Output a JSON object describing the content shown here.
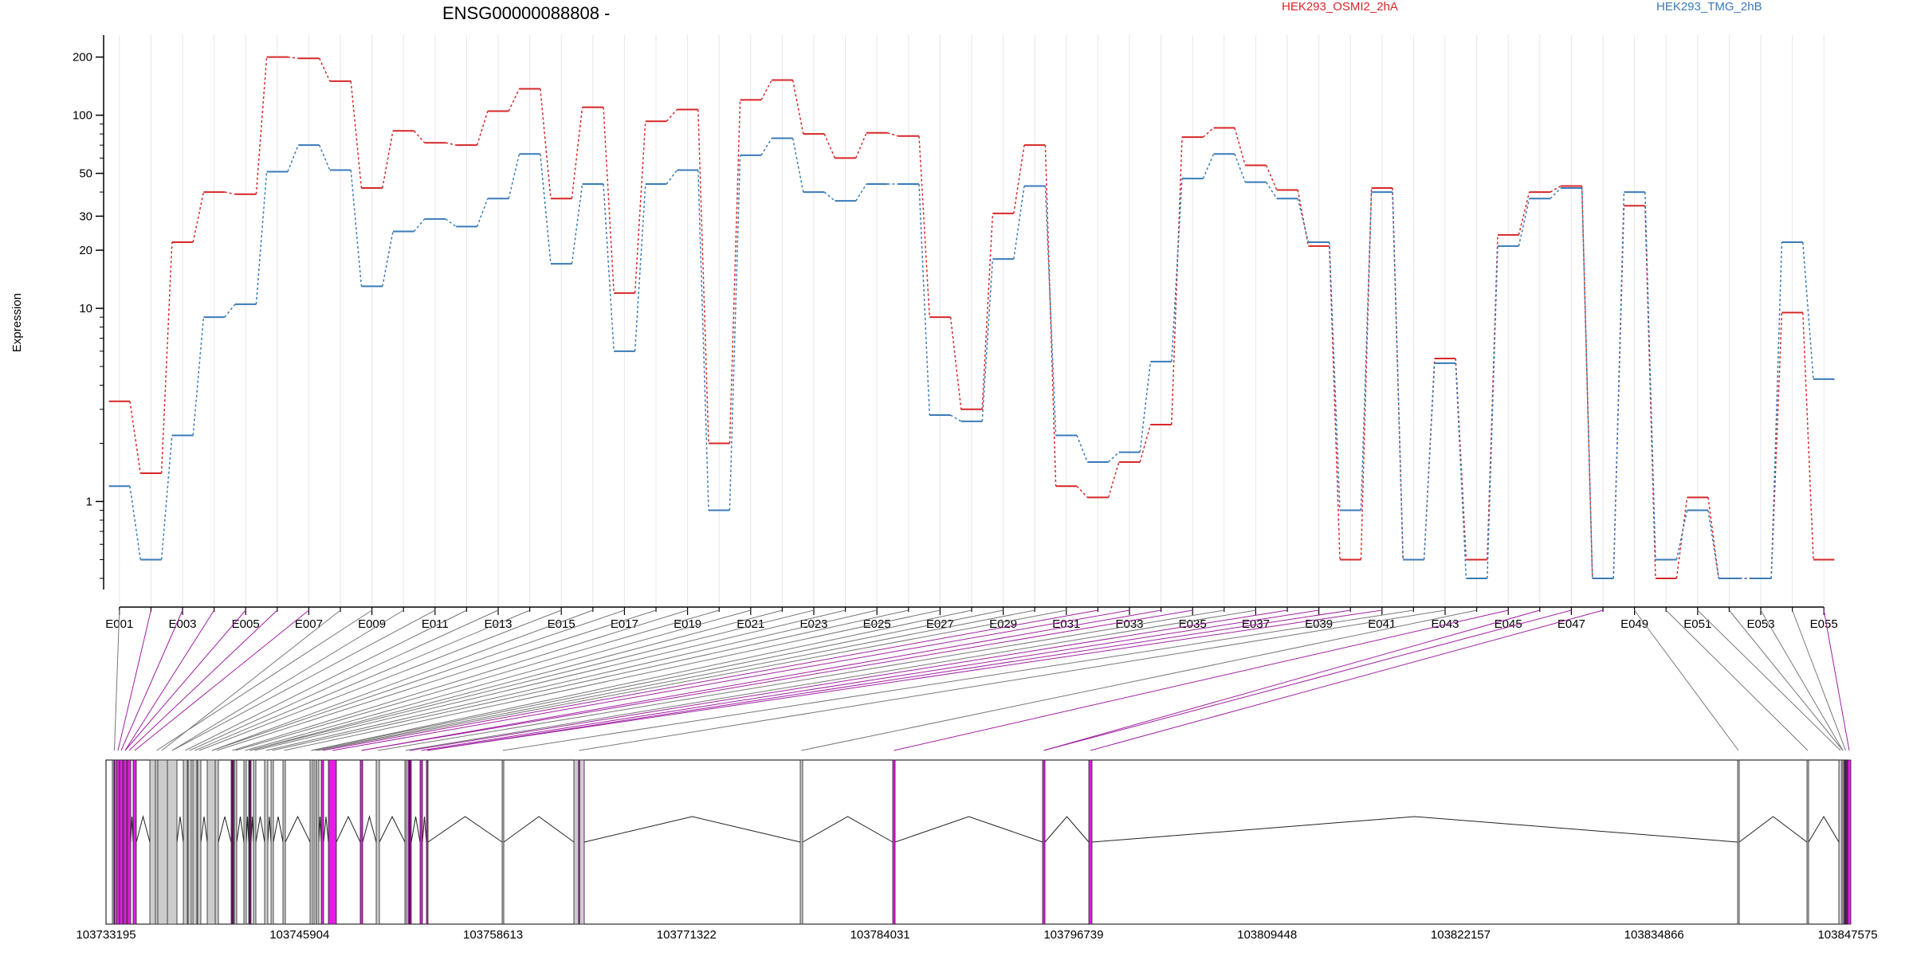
{
  "chart_data": {
    "type": "line",
    "title": "ENSG00000088808 -",
    "xlabel": "",
    "ylabel": "Expression",
    "y_scale": "log",
    "ylim": [
      0.35,
      260
    ],
    "y_ticks": [
      1,
      10,
      20,
      30,
      50,
      100,
      200
    ],
    "grid": true,
    "legend_placement": "top",
    "x_tick_labels": [
      "E001",
      "E003",
      "E005",
      "E007",
      "E009",
      "E011",
      "E013",
      "E015",
      "E017",
      "E019",
      "E021",
      "E023",
      "E025",
      "E027",
      "E029",
      "E031",
      "E033",
      "E035",
      "E037",
      "E039",
      "E041",
      "E043",
      "E045",
      "E047",
      "E049",
      "E051",
      "E053",
      "E055"
    ],
    "exons": [
      "E001",
      "E002",
      "E003",
      "E004",
      "E005",
      "E006",
      "E007",
      "E008",
      "E009",
      "E010",
      "E011",
      "E012",
      "E013",
      "E014",
      "E015",
      "E016",
      "E017",
      "E018",
      "E019",
      "E020",
      "E021",
      "E022",
      "E023",
      "E024",
      "E025",
      "E026",
      "E027",
      "E028",
      "E029",
      "E030",
      "E031",
      "E032",
      "E033",
      "E034",
      "E035",
      "E036",
      "E037",
      "E038",
      "E039",
      "E040",
      "E041",
      "E042",
      "E043",
      "E044",
      "E045",
      "E046",
      "E047",
      "E048",
      "E049",
      "E050",
      "E051",
      "E052",
      "E053",
      "E054",
      "E055"
    ],
    "series": [
      {
        "name": "HEK293_OSMI2_2hA",
        "color": "#d62728",
        "values": [
          3.3,
          1.4,
          22,
          40,
          39,
          200,
          197,
          150,
          42,
          83,
          72,
          70,
          105,
          137,
          37,
          110,
          12,
          93,
          107,
          2.0,
          120,
          152,
          80,
          60,
          81,
          78,
          9,
          3,
          31,
          70,
          1.2,
          1.05,
          1.6,
          2.5,
          77,
          86,
          55,
          41,
          21,
          0.5,
          42,
          0.5,
          5.5,
          0.5,
          24,
          40,
          43,
          0.4,
          34,
          0.4,
          1.05,
          0.4,
          0.4,
          9.5,
          0.5
        ]
      },
      {
        "name": "HEK293_TMG_2hB",
        "color": "#3a7ab8",
        "values": [
          1.2,
          0.5,
          2.2,
          9,
          10.5,
          51,
          70,
          52,
          13,
          25,
          29,
          26.5,
          37,
          63,
          17,
          44,
          6,
          44,
          52,
          0.9,
          62,
          76,
          40,
          36,
          44,
          44,
          2.8,
          2.6,
          18,
          43,
          2.2,
          1.6,
          1.8,
          5.3,
          47,
          63,
          45,
          37,
          22,
          0.9,
          40,
          0.5,
          5.2,
          0.4,
          21,
          37,
          42,
          0.4,
          40,
          0.5,
          0.9,
          0.4,
          0.4,
          22,
          4.3
        ]
      }
    ]
  },
  "gene_model": {
    "genomic_positions": [
      "103733195",
      "103745904",
      "103758613",
      "103771322",
      "103784031",
      "103796739",
      "103809448",
      "103822157",
      "103834866",
      "103847575"
    ],
    "colors": {
      "highlight_exon": "#e21ee2",
      "normal_exon": "#cccccc",
      "highlight_connector": "#a020a0",
      "normal_connector": "#777777"
    }
  }
}
